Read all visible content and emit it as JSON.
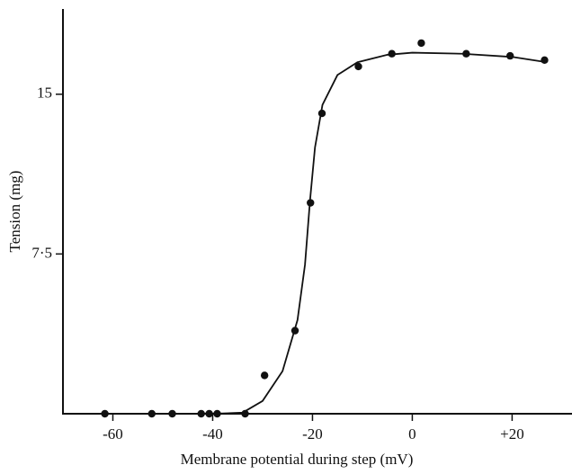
{
  "chart_data": {
    "type": "scatter",
    "x_label": "Membrane potential during step (mV)",
    "y_label": "Tension (mg)",
    "xlim": [
      -70,
      32
    ],
    "ylim": [
      0,
      19
    ],
    "xticks": [
      -60,
      -40,
      -20,
      0,
      {
        "value": 20,
        "label": "+20"
      }
    ],
    "yticks": [
      {
        "value": 7.5,
        "label": "7·5"
      },
      15
    ],
    "series": [
      {
        "mode": "markers",
        "color": "#111111",
        "x": [
          -61.6,
          -52.2,
          -48.1,
          -42.3,
          -40.7,
          -39.1,
          -33.5,
          -29.6,
          -23.5,
          -20.4,
          -18.1,
          -10.8,
          -4.1,
          1.8,
          10.8,
          19.6,
          26.5
        ],
        "values": [
          0,
          0,
          0,
          0,
          0,
          0,
          0,
          1.8,
          3.9,
          9.9,
          14.1,
          16.3,
          16.9,
          17.4,
          16.9,
          16.8,
          16.6
        ]
      },
      {
        "mode": "line",
        "color": "#111111",
        "x": [
          -70,
          -40,
          -34,
          -30,
          -26,
          -23,
          -21.5,
          -20.5,
          -19.5,
          -18,
          -15,
          -11,
          -5,
          0,
          10,
          20,
          27
        ],
        "values": [
          0,
          0,
          0.05,
          0.6,
          2,
          4.4,
          7,
          10,
          12.5,
          14.5,
          15.9,
          16.5,
          16.85,
          16.95,
          16.9,
          16.75,
          16.5
        ]
      }
    ]
  }
}
